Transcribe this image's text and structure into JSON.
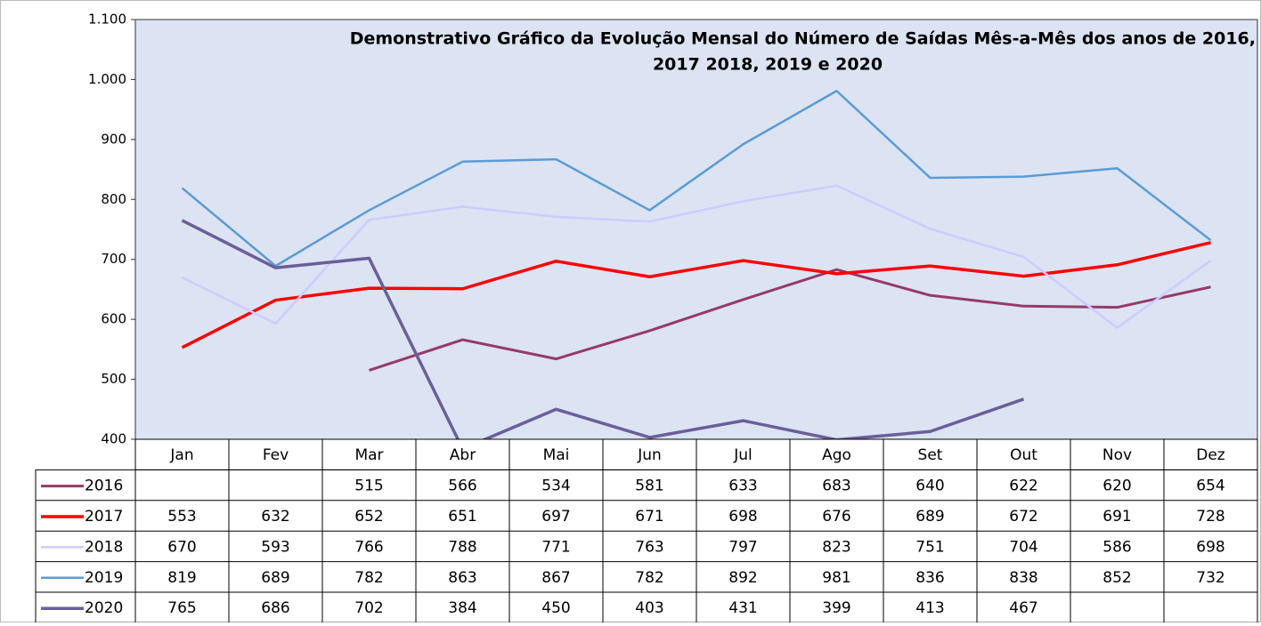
{
  "chart_data": {
    "type": "line",
    "title": [
      "Demonstrativo Gráfico da Evolução Mensal do Número de Saídas Mês-a-Mês dos anos de  2016,",
      "2017 2018, 2019 e 2020"
    ],
    "categories": [
      "Jan",
      "Fev",
      "Mar",
      "Abr",
      "Mai",
      "Jun",
      "Jul",
      "Ago",
      "Set",
      "Out",
      "Nov",
      "Dez"
    ],
    "series": [
      {
        "name": "2016",
        "color": "#953a6a",
        "values": [
          null,
          null,
          515,
          566,
          534,
          581,
          633,
          683,
          640,
          622,
          620,
          654
        ]
      },
      {
        "name": "2017",
        "color": "#ff0000",
        "values": [
          553,
          632,
          652,
          651,
          697,
          671,
          698,
          676,
          689,
          672,
          691,
          728
        ]
      },
      {
        "name": "2018",
        "color": "#ccccff",
        "values": [
          670,
          593,
          766,
          788,
          771,
          763,
          797,
          823,
          751,
          704,
          586,
          698
        ]
      },
      {
        "name": "2019",
        "color": "#5b9bd5",
        "values": [
          819,
          689,
          782,
          863,
          867,
          782,
          892,
          981,
          836,
          838,
          852,
          732
        ]
      },
      {
        "name": "2020",
        "color": "#6a5f99",
        "values": [
          765,
          686,
          702,
          384,
          450,
          403,
          431,
          399,
          413,
          467,
          null,
          null
        ]
      }
    ],
    "ylim": [
      400,
      1100
    ],
    "yticks": [
      400,
      500,
      600,
      700,
      800,
      900,
      {
        "value": 1000,
        "label": "1.000"
      },
      {
        "value": 1100,
        "label": "1.100"
      }
    ],
    "grid": false
  }
}
